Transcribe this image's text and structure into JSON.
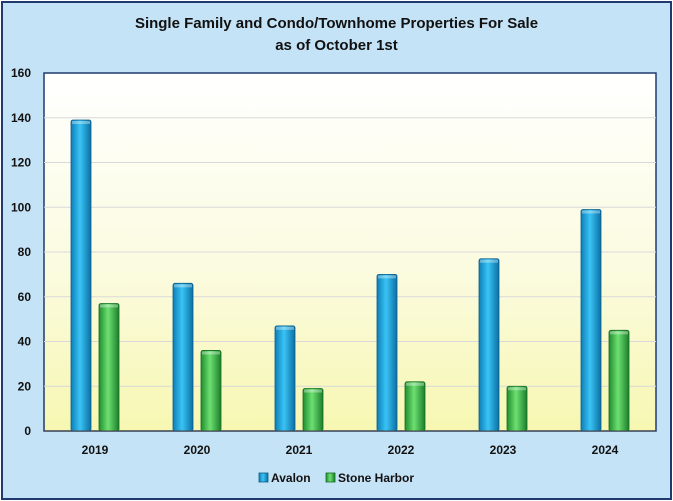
{
  "chart_data": {
    "type": "bar",
    "title": "Single Family and Condo/Townhome Properties For Sale",
    "subtitle": "as of October 1st",
    "categories": [
      "2019",
      "2020",
      "2021",
      "2022",
      "2023",
      "2024"
    ],
    "series": [
      {
        "name": "Avalon",
        "color": "#1aa7e3",
        "values": [
          139,
          66,
          47,
          70,
          77,
          99
        ]
      },
      {
        "name": "Stone Harbor",
        "color": "#3fc24a",
        "values": [
          57,
          36,
          19,
          22,
          20,
          45
        ]
      }
    ],
    "ylim": [
      0,
      160
    ],
    "yticks": [
      0,
      20,
      40,
      60,
      80,
      100,
      120,
      140,
      160
    ],
    "grid": true,
    "legend": "bottom",
    "xlabel": "",
    "ylabel": ""
  }
}
